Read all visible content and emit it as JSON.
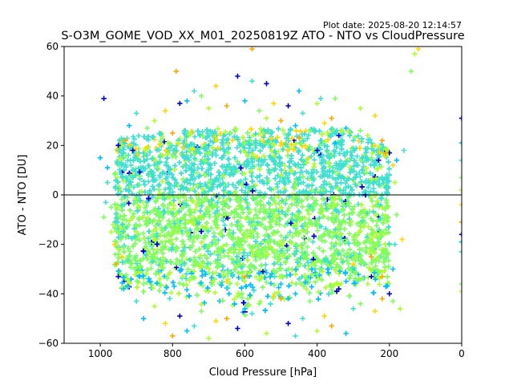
{
  "plot_date": "Plot date: 2025-08-20 12:14:57",
  "chart_data": {
    "type": "scatter",
    "title": "S-O3M_GOME_VOD_XX_M01_20250819Z ATO - NTO vs CloudPressure",
    "xlabel": "Cloud Pressure [hPa]",
    "ylabel": "ATO - NTO [DU]",
    "xlim": [
      1100,
      0
    ],
    "ylim": [
      -60,
      60
    ],
    "x_ticks": [
      1000,
      800,
      600,
      400,
      200,
      0
    ],
    "y_ticks": [
      -60,
      -40,
      -20,
      0,
      20,
      40,
      60
    ],
    "x_tick_labels": [
      "1000",
      "800",
      "600",
      "400",
      "200",
      "0"
    ],
    "y_tick_labels": [
      "−60",
      "−40",
      "−20",
      "0",
      "20",
      "40",
      "60"
    ],
    "reference_line_y": 0,
    "marker": "plus",
    "grid": false,
    "palette": [
      "#0000cd",
      "#00bfff",
      "#40e0d0",
      "#7fff5f",
      "#adff2f",
      "#ffd700",
      "#ffa500"
    ],
    "points": [
      [
        950,
        20
      ],
      [
        920,
        28
      ],
      [
        900,
        33
      ],
      [
        870,
        27
      ],
      [
        850,
        30
      ],
      [
        820,
        34
      ],
      [
        800,
        25
      ],
      [
        780,
        37
      ],
      [
        760,
        38
      ],
      [
        740,
        42
      ],
      [
        720,
        40
      ],
      [
        700,
        35
      ],
      [
        680,
        44
      ],
      [
        650,
        36
      ],
      [
        620,
        48
      ],
      [
        600,
        38
      ],
      [
        580,
        46
      ],
      [
        560,
        34
      ],
      [
        540,
        31
      ],
      [
        520,
        37
      ],
      [
        500,
        30
      ],
      [
        480,
        36
      ],
      [
        460,
        28
      ],
      [
        440,
        33
      ],
      [
        420,
        26
      ],
      [
        400,
        37
      ],
      [
        380,
        29
      ],
      [
        360,
        31
      ],
      [
        340,
        24
      ],
      [
        320,
        27
      ],
      [
        300,
        22
      ],
      [
        280,
        26
      ],
      [
        260,
        24
      ],
      [
        240,
        20
      ],
      [
        220,
        22
      ],
      [
        200,
        17
      ],
      [
        180,
        14
      ],
      [
        160,
        18
      ],
      [
        140,
        50
      ],
      [
        130,
        57
      ],
      [
        120,
        59
      ],
      [
        580,
        59
      ],
      [
        540,
        45
      ],
      [
        450,
        42
      ],
      [
        390,
        39
      ],
      [
        350,
        39
      ],
      [
        280,
        35
      ],
      [
        240,
        32
      ],
      [
        790,
        50
      ],
      [
        990,
        39
      ],
      [
        1000,
        15
      ],
      [
        980,
        5
      ],
      [
        970,
        -5
      ],
      [
        965,
        -12
      ],
      [
        960,
        -20
      ],
      [
        955,
        -28
      ],
      [
        950,
        -33
      ],
      [
        935,
        -38
      ],
      [
        900,
        -43
      ],
      [
        880,
        -36
      ],
      [
        850,
        -45
      ],
      [
        820,
        -52
      ],
      [
        800,
        -57
      ],
      [
        780,
        -49
      ],
      [
        760,
        -55
      ],
      [
        740,
        -53
      ],
      [
        720,
        -47
      ],
      [
        700,
        -58
      ],
      [
        680,
        -51
      ],
      [
        650,
        -50
      ],
      [
        620,
        -54
      ],
      [
        600,
        -46
      ],
      [
        580,
        -48
      ],
      [
        560,
        -44
      ],
      [
        540,
        -56
      ],
      [
        520,
        -41
      ],
      [
        500,
        -42
      ],
      [
        480,
        -52
      ],
      [
        460,
        -40
      ],
      [
        440,
        -50
      ],
      [
        420,
        -43
      ],
      [
        400,
        -55
      ],
      [
        380,
        -49
      ],
      [
        360,
        -53
      ],
      [
        340,
        -38
      ],
      [
        320,
        -56
      ],
      [
        300,
        -46
      ],
      [
        280,
        -44
      ],
      [
        260,
        -36
      ],
      [
        240,
        -47
      ],
      [
        220,
        -42
      ],
      [
        200,
        -40
      ],
      [
        190,
        -30
      ],
      [
        185,
        -20
      ],
      [
        180,
        -8
      ],
      [
        185,
        5
      ],
      [
        190,
        12
      ],
      [
        210,
        17
      ],
      [
        230,
        14
      ],
      [
        880,
        -50
      ],
      [
        460,
        -57
      ],
      [
        190,
        -43
      ],
      [
        170,
        -46
      ],
      [
        165,
        -18
      ],
      [
        220,
        -33
      ],
      [
        250,
        -33
      ],
      [
        980,
        11
      ],
      [
        985,
        -3
      ],
      [
        990,
        -9
      ],
      [
        970,
        -15
      ],
      [
        940,
        -25
      ],
      [
        930,
        22
      ],
      [
        910,
        18
      ],
      [
        700,
        20
      ],
      [
        650,
        22
      ],
      [
        600,
        21
      ],
      [
        550,
        25
      ],
      [
        500,
        20
      ],
      [
        450,
        23
      ],
      [
        400,
        18
      ],
      [
        350,
        21
      ],
      [
        300,
        19
      ],
      [
        250,
        15
      ],
      [
        700,
        -30
      ],
      [
        650,
        -35
      ],
      [
        600,
        -33
      ],
      [
        550,
        -31
      ],
      [
        500,
        -36
      ],
      [
        450,
        -34
      ],
      [
        400,
        -32
      ],
      [
        350,
        -30
      ],
      [
        300,
        -28
      ],
      [
        250,
        -25
      ],
      [
        0,
        31
      ],
      [
        0,
        21
      ],
      [
        0,
        14
      ],
      [
        0,
        7
      ],
      [
        0,
        2
      ],
      [
        0,
        -4
      ],
      [
        0,
        -11
      ],
      [
        0,
        -16
      ],
      [
        0,
        -19
      ],
      [
        0,
        -23
      ],
      [
        0,
        -36
      ],
      [
        0,
        -39
      ]
    ]
  }
}
